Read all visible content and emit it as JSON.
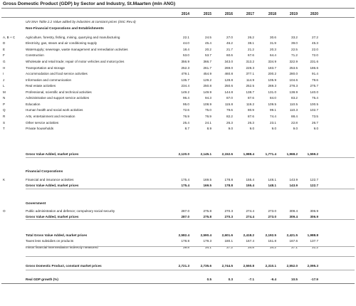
{
  "title": "Gross Domestic Product (GDP) by Sector and Industry, St.Maarten (mln ANG)",
  "years": [
    "2014",
    "2015",
    "2016",
    "2017",
    "2018",
    "2019",
    "2020"
  ],
  "subtitle": "UN SNA Table 2.2 Value added by industries at constant prices (ISIC Rev.4)",
  "sections": {
    "nonfin": "Non-Financial Corporations and Establishments",
    "fin": "Financial Corporations",
    "gov": "Government"
  },
  "rows": [
    {
      "code": "A, B + C",
      "label": "Agriculture, forestry, fishing, mining, quarrying and manufacturing",
      "values": [
        "22.1",
        "24.5",
        "27.0",
        "26.2",
        "30.6",
        "33.2",
        "27.2"
      ]
    },
    {
      "code": "D",
      "label": "Electricity, gas, steam and air conditioning supply",
      "values": [
        "44.0",
        "45.4",
        "46.2",
        "38.1",
        "31.9",
        "39.0",
        "45.3"
      ]
    },
    {
      "code": "E",
      "label": "Watersupply; sewerage, waste management and remediation activities",
      "values": [
        "18.4",
        "20.2",
        "21.7",
        "21.2",
        "20.3",
        "22.5",
        "22.0"
      ]
    },
    {
      "code": "F",
      "label": "Construction",
      "values": [
        "53.0",
        "53.7",
        "60.6",
        "67.6",
        "64.4",
        "71.2",
        "72.0"
      ]
    },
    {
      "code": "G",
      "label": "Wholesale and retail trade; repair of motor vehicles and motorcycles",
      "values": [
        "356.9",
        "366.7",
        "343.0",
        "313.2",
        "334.9",
        "322.9",
        "231.6"
      ]
    },
    {
      "code": "H",
      "label": "Transportation and storage",
      "values": [
        "252.3",
        "261.7",
        "269.0",
        "228.3",
        "183.7",
        "253.5",
        "186.6"
      ]
    },
    {
      "code": "I",
      "label": "Accommodation and food service activities",
      "values": [
        "479.1",
        "454.9",
        "460.8",
        "377.1",
        "200.2",
        "280.0",
        "91.4"
      ]
    },
    {
      "code": "J",
      "label": "Information and communication",
      "values": [
        "135.7",
        "129.2",
        "128.8",
        "114.9",
        "105.9",
        "104.6",
        "79.6"
      ]
    },
    {
      "code": "L",
      "label": "Real estate activities",
      "values": [
        "234.4",
        "250.8",
        "250.6",
        "252.5",
        "269.3",
        "278.3",
        "275.7"
      ]
    },
    {
      "code": "M",
      "label": "Professional, scientific and technical activities",
      "values": [
        "149.2",
        "149.9",
        "144.8",
        "138.7",
        "131.0",
        "138.9",
        "140.0"
      ]
    },
    {
      "code": "N",
      "label": "Administrative and support service activities",
      "values": [
        "96.4",
        "94.3",
        "87.0",
        "87.6",
        "84.0",
        "83.2",
        "75.4"
      ]
    },
    {
      "code": "P",
      "label": "Education",
      "values": [
        "95.0",
        "108.9",
        "115.8",
        "119.2",
        "109.5",
        "110.5",
        "100.5"
      ]
    },
    {
      "code": "Q",
      "label": "Human health and social work activities",
      "values": [
        "72.6",
        "75.0",
        "79.6",
        "80.9",
        "99.1",
        "110.3",
        "102.7"
      ]
    },
    {
      "code": "R",
      "label": "Arts, entertainment and recreation",
      "values": [
        "76.9",
        "76.9",
        "82.2",
        "87.6",
        "74.4",
        "88.4",
        "73.5"
      ]
    },
    {
      "code": "S",
      "label": "Other service activities",
      "values": [
        "25.4",
        "24.1",
        "26.3",
        "26.3",
        "23.1",
        "22.8",
        "26.7"
      ]
    },
    {
      "code": "T",
      "label": "Private households",
      "values": [
        "8.7",
        "8.9",
        "9.0",
        "9.0",
        "9.0",
        "9.0",
        "9.0"
      ]
    },
    {
      "code": "",
      "label": "Gross Value Added, market prices",
      "values": [
        "2,120.0",
        "2,145.1",
        "2,152.6",
        "1,988.4",
        "1,771.4",
        "1,968.2",
        "1,559.2"
      ],
      "bold": true
    },
    {
      "code": "K",
      "label": "Financial and insurance activities",
      "values": [
        "175.4",
        "169.5",
        "178.8",
        "155.4",
        "148.1",
        "143.9",
        "122.7"
      ]
    },
    {
      "code": "",
      "label": "Gross Value Added, market prices",
      "values": [
        "175.4",
        "169.5",
        "178.8",
        "155.4",
        "148.1",
        "143.9",
        "122.7"
      ],
      "bold": true
    },
    {
      "code": "O",
      "label": "Public administration and defence; compulsory social security",
      "values": [
        "287.0",
        "275.8",
        "270.3",
        "274.4",
        "273.0",
        "309.4",
        "306.9"
      ]
    },
    {
      "code": "",
      "label": "Gross Value Added, market prices",
      "values": [
        "287.0",
        "275.8",
        "270.3",
        "274.4",
        "273.0",
        "309.4",
        "306.9"
      ],
      "bold": true
    },
    {
      "code": "",
      "label": "Total Gross Value Added, market prices",
      "values": [
        "2,582.4",
        "2,590.4",
        "2,601.6",
        "2,418.2",
        "2,192.5",
        "2,421.5",
        "1,988.8"
      ],
      "bold": true
    },
    {
      "code": "",
      "label": "Taxes less subsidies on products",
      "values": [
        "178.8",
        "179.3",
        "180.1",
        "167.4",
        "151.8",
        "167.6",
        "137.7"
      ]
    },
    {
      "code": "",
      "label": "minus financial intermediation indirectly measured",
      "values": [
        "39.8",
        "34.1",
        "37.2",
        "34.8",
        "34.2",
        "37.1",
        "31.2"
      ]
    },
    {
      "code": "",
      "label": "Gross Domestic Product, constant market prices",
      "values": [
        "2,721.3",
        "2,735.6",
        "2,744.5",
        "2,550.8",
        "2,310.1",
        "2,552.0",
        "2,095.3"
      ],
      "bold": true
    },
    {
      "code": "",
      "label": "Real GDP growth (%)",
      "values": [
        "",
        "0.5",
        "0.3",
        "-7.1",
        "-9.4",
        "10.5",
        "-17.9"
      ],
      "bold": true
    }
  ]
}
